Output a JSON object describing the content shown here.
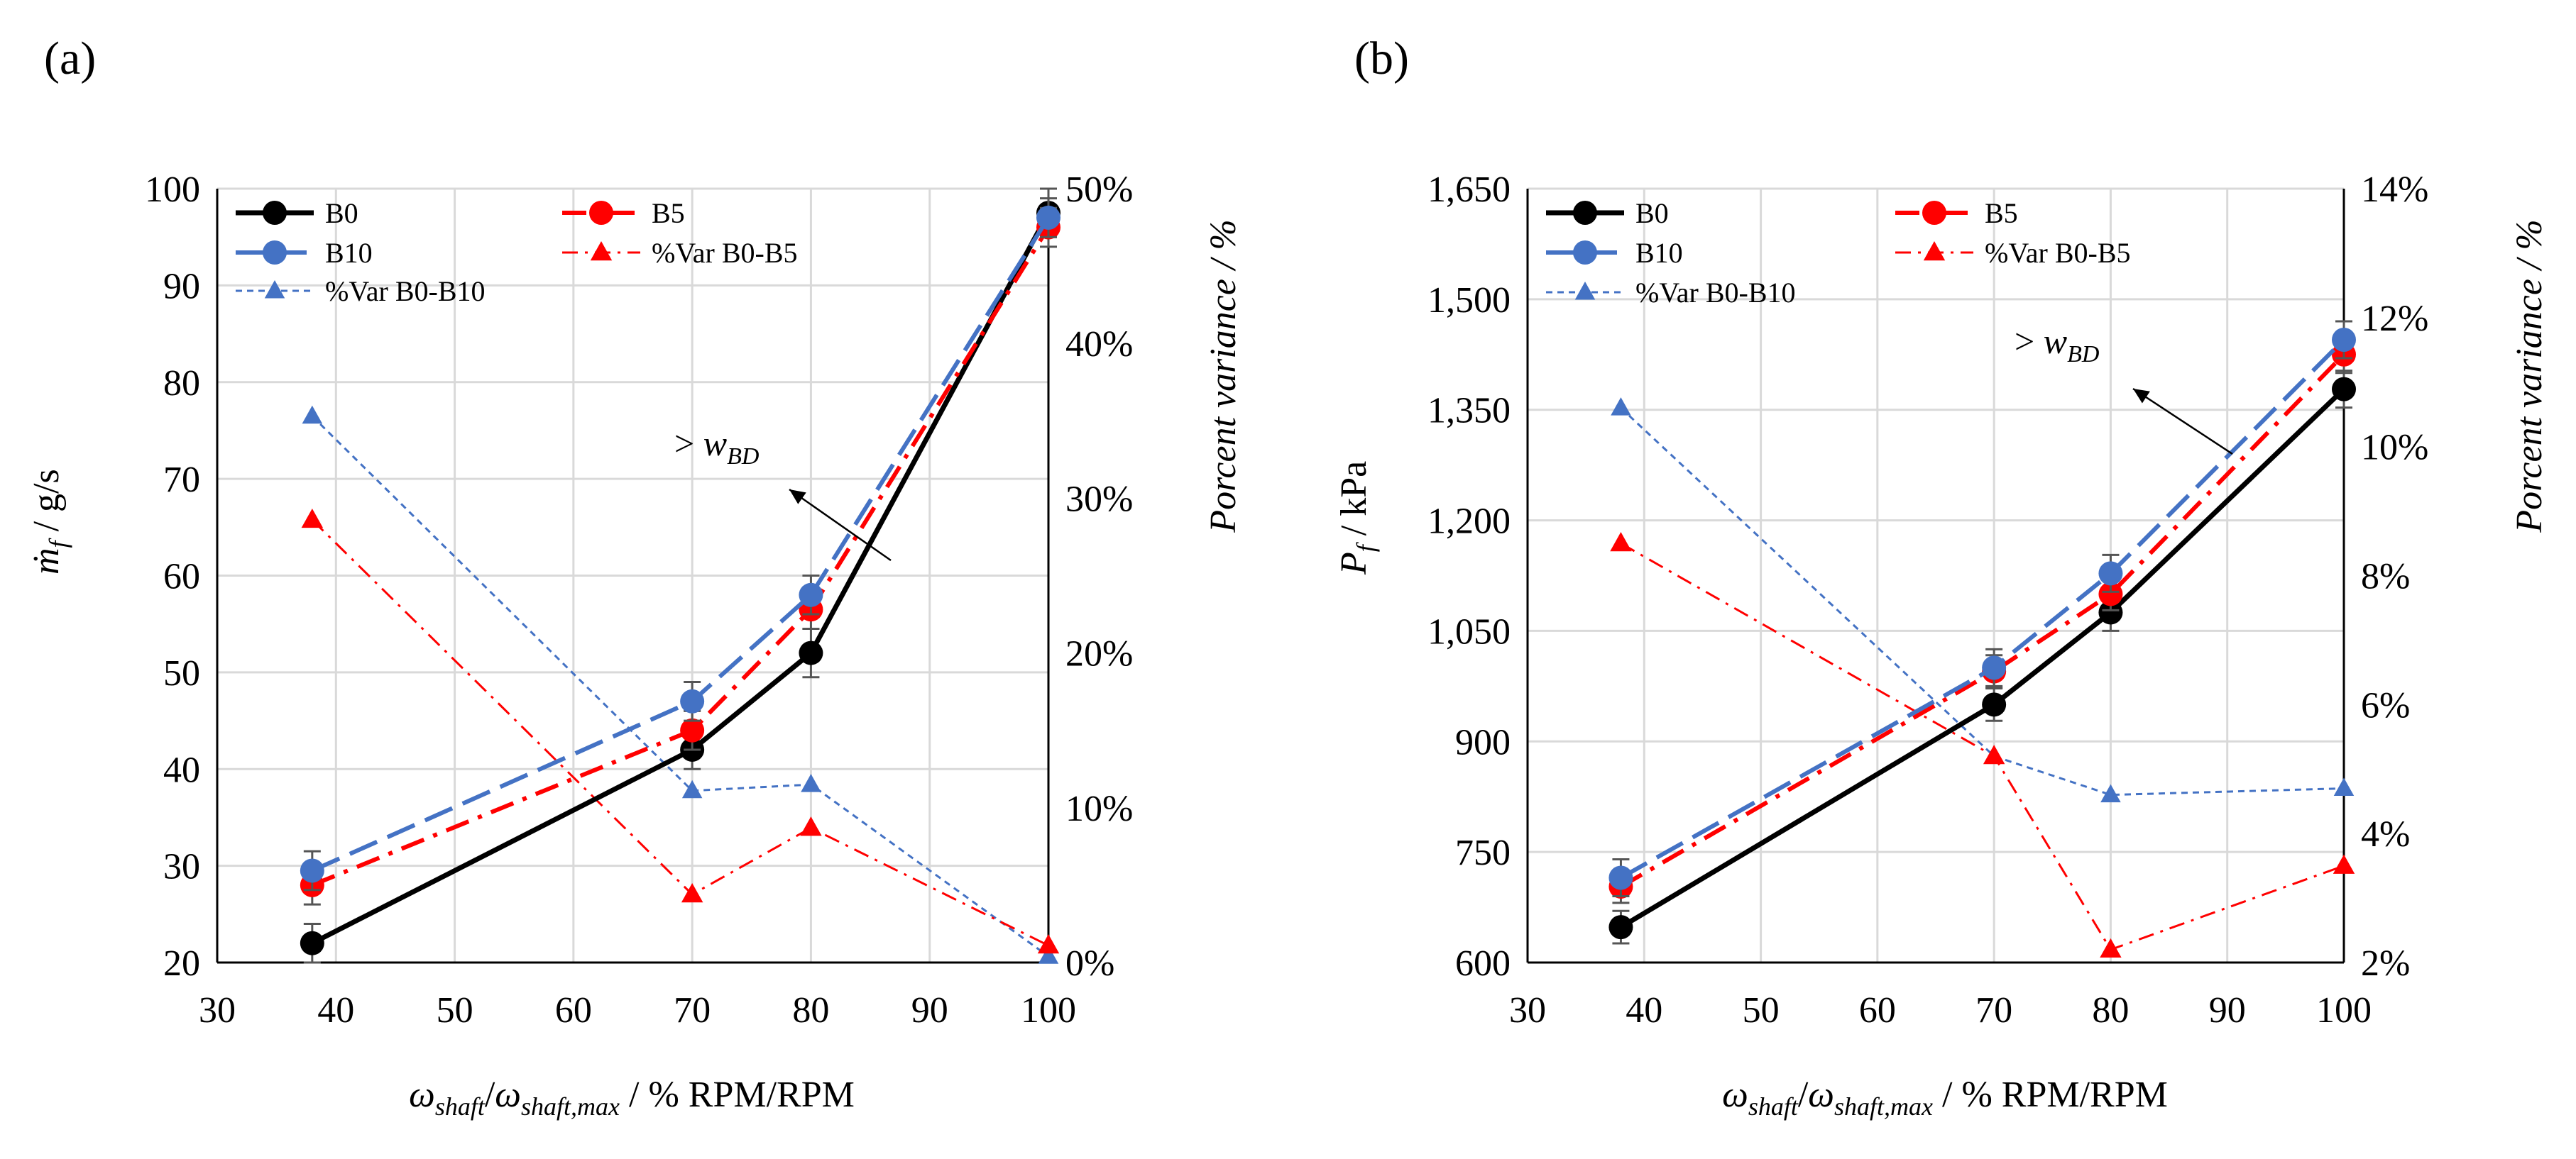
{
  "colors": {
    "B0": "#000000",
    "B5": "#ff0000",
    "B10": "#4472c4",
    "var_b5": "#ff0000",
    "var_b10": "#4472c4",
    "grid": "#d9d9d9"
  },
  "chart_data": [
    {
      "id": "a",
      "panel_label": "(a)",
      "type": "line",
      "xlim": [
        30,
        100
      ],
      "xticks": [
        30,
        40,
        50,
        60,
        70,
        80,
        90,
        100
      ],
      "ylim": [
        20,
        100
      ],
      "yticks": [
        20,
        30,
        40,
        50,
        60,
        70,
        80,
        90,
        100
      ],
      "ytick_labels": [
        "20",
        "30",
        "40",
        "50",
        "60",
        "70",
        "80",
        "90",
        "100"
      ],
      "y2lim": [
        0,
        50
      ],
      "y2ticks": [
        0,
        10,
        20,
        30,
        40,
        50
      ],
      "y2tick_labels": [
        "0%",
        "10%",
        "20%",
        "30%",
        "40%",
        "50%"
      ],
      "ylabel_symbol": "ṁ",
      "ylabel_sub": "f",
      "ylabel_unit": " / g/s",
      "y2label": "Porcent variance / %",
      "xlabel_w1": "ω",
      "xlabel_s1": "shaft",
      "xlabel_slash": "/",
      "xlabel_w2": "ω",
      "xlabel_s2": "shaft,max",
      "xlabel_tail": "  / % RPM/RPM",
      "annotation_prefix": "> ",
      "annotation_w": "w",
      "annotation_sub": "BD",
      "series": [
        {
          "name": "B0",
          "axis": "left",
          "x": [
            38,
            70,
            80,
            100
          ],
          "values": [
            22,
            42,
            52,
            97.5
          ],
          "err": [
            2,
            2,
            2.5,
            2.5
          ]
        },
        {
          "name": "B5",
          "axis": "left",
          "x": [
            38,
            70,
            80,
            100
          ],
          "values": [
            28,
            44,
            56.5,
            96
          ],
          "err": [
            2,
            2,
            2,
            2
          ]
        },
        {
          "name": "B10",
          "axis": "left",
          "x": [
            38,
            70,
            80,
            100
          ],
          "values": [
            29.5,
            47,
            58,
            97
          ],
          "err": [
            2,
            2,
            2,
            2
          ]
        },
        {
          "name": "%Var B0-B5",
          "axis": "right",
          "x": [
            38,
            70,
            80,
            100
          ],
          "values": [
            28.6,
            4.4,
            8.7,
            1.1
          ]
        },
        {
          "name": "%Var B0-B10",
          "axis": "right",
          "x": [
            38,
            70,
            80,
            100
          ],
          "values": [
            35.3,
            11.1,
            11.5,
            0.4
          ]
        }
      ]
    },
    {
      "id": "b",
      "panel_label": "(b)",
      "type": "line",
      "xlim": [
        30,
        100
      ],
      "xticks": [
        30,
        40,
        50,
        60,
        70,
        80,
        90,
        100
      ],
      "ylim": [
        600,
        1650
      ],
      "yticks": [
        600,
        750,
        900,
        1050,
        1200,
        1350,
        1500,
        1650
      ],
      "ytick_labels": [
        "600",
        "750",
        "900",
        "1,050",
        "1,200",
        "1,350",
        "1,500",
        "1,650"
      ],
      "y2lim": [
        2,
        14
      ],
      "y2ticks": [
        2,
        4,
        6,
        8,
        10,
        12,
        14
      ],
      "y2tick_labels": [
        "2%",
        "4%",
        "6%",
        "8%",
        "10%",
        "12%",
        "14%"
      ],
      "ylabel_symbol": "P",
      "ylabel_sub": "f",
      "ylabel_unit": " / kPa",
      "y2label": "Porcent variance / %",
      "xlabel_w1": "ω",
      "xlabel_s1": "shaft",
      "xlabel_slash": "/",
      "xlabel_w2": "ω",
      "xlabel_s2": "shaft,max",
      "xlabel_tail": "  / % RPM/RPM",
      "annotation_prefix": "> ",
      "annotation_w": "w",
      "annotation_sub": "BD",
      "series": [
        {
          "name": "B0",
          "axis": "left",
          "x": [
            38,
            70,
            80,
            100
          ],
          "values": [
            648,
            950,
            1075,
            1378
          ],
          "err": [
            22,
            22,
            25,
            25
          ]
        },
        {
          "name": "B5",
          "axis": "left",
          "x": [
            38,
            70,
            80,
            100
          ],
          "values": [
            703,
            995,
            1100,
            1425
          ],
          "err": [
            22,
            22,
            22,
            25
          ]
        },
        {
          "name": "B10",
          "axis": "left",
          "x": [
            38,
            70,
            80,
            100
          ],
          "values": [
            715,
            1000,
            1128,
            1445
          ],
          "err": [
            25,
            25,
            25,
            25
          ]
        },
        {
          "name": "%Var B0-B5",
          "axis": "right",
          "x": [
            38,
            70,
            80,
            100
          ],
          "values": [
            8.5,
            5.2,
            2.2,
            3.5
          ]
        },
        {
          "name": "%Var B0-B10",
          "axis": "right",
          "x": [
            38,
            70,
            80,
            100
          ],
          "values": [
            10.6,
            5.2,
            4.6,
            4.7
          ]
        }
      ]
    }
  ]
}
